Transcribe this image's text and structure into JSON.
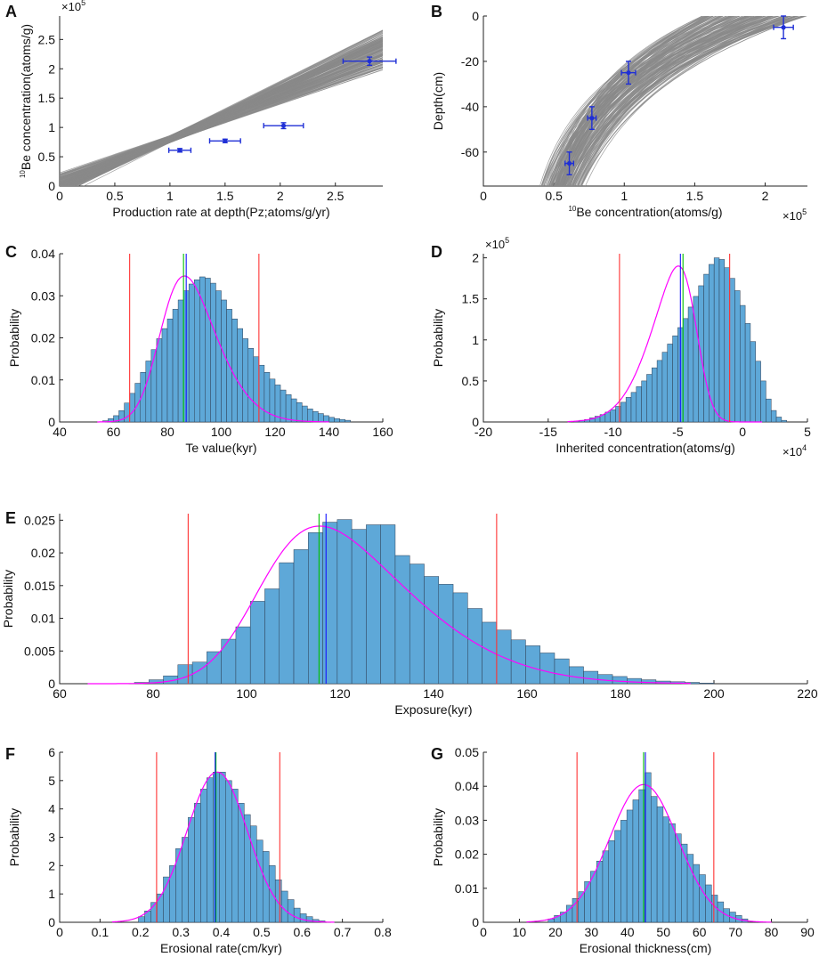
{
  "colors": {
    "gray_lines": "#8a8a8a",
    "points": "#1f2fd6",
    "bars": "#5ea8d8",
    "bar_edge": "#2e3f55",
    "kde": "#ff00ff",
    "ci": "#ff3333",
    "mean": "#1414ff",
    "median": "#00c000"
  },
  "chart_data": [
    {
      "id": "A",
      "type": "line",
      "panel_label": "A",
      "xlabel": "Production rate at depth(Pz;atoms/g/yr)",
      "ylabel": "Be concentration(atoms/g)",
      "ylabel_sup": "10",
      "y_multiplier": "×10",
      "y_multiplier_exp": "5",
      "xlim": [
        0,
        2.93
      ],
      "ylim": [
        0,
        2.9
      ],
      "xticks": [
        0,
        0.5,
        1,
        1.5,
        2,
        2.5
      ],
      "xtick_labels": [
        "0",
        "0.5",
        "1",
        "1.5",
        "2",
        "2.5"
      ],
      "yticks": [
        0,
        0.5,
        1,
        1.5,
        2,
        2.5
      ],
      "ytick_labels": [
        "0",
        "0.5",
        "1",
        "1.5",
        "2",
        "2.5"
      ],
      "model_lines": {
        "count": 160,
        "description": "Monte Carlo fitted profiles"
      },
      "points": [
        {
          "x": 1.09,
          "y": 0.61,
          "xerr": 0.1,
          "yerr": 0.03
        },
        {
          "x": 1.5,
          "y": 0.77,
          "xerr": 0.14,
          "yerr": 0.03
        },
        {
          "x": 2.03,
          "y": 1.03,
          "xerr": 0.18,
          "yerr": 0.05
        },
        {
          "x": 2.81,
          "y": 2.13,
          "xerr": 0.24,
          "yerr": 0.07
        }
      ]
    },
    {
      "id": "B",
      "type": "line",
      "panel_label": "B",
      "xlabel": "Be concentration(atoms/g)",
      "xlabel_sup": "10",
      "ylabel": "Depth(cm)",
      "x_multiplier": "×10",
      "x_multiplier_exp": "5",
      "xlim": [
        0,
        2.3
      ],
      "ylim": [
        -75,
        0
      ],
      "xticks": [
        0,
        0.5,
        1,
        1.5,
        2
      ],
      "xtick_labels": [
        "0",
        "0.5",
        "1",
        "1.5",
        "2"
      ],
      "yticks": [
        -60,
        -40,
        -20,
        0
      ],
      "ytick_labels": [
        "-60",
        "-40",
        "-20",
        "0"
      ],
      "model_lines": {
        "count": 160,
        "description": "Monte Carlo fitted profiles"
      },
      "points": [
        {
          "x": 0.61,
          "y": -65,
          "xerr": 0.03,
          "yerr": 5
        },
        {
          "x": 0.77,
          "y": -45,
          "xerr": 0.03,
          "yerr": 5
        },
        {
          "x": 1.03,
          "y": -25,
          "xerr": 0.05,
          "yerr": 5
        },
        {
          "x": 2.13,
          "y": -5,
          "xerr": 0.07,
          "yerr": 5
        }
      ]
    },
    {
      "id": "C",
      "type": "bar",
      "panel_label": "C",
      "xlabel": "Te value(kyr)",
      "ylabel": "Probability",
      "xlim": [
        40,
        160
      ],
      "ylim": [
        0,
        0.04
      ],
      "xticks": [
        40,
        60,
        80,
        100,
        120,
        140,
        160
      ],
      "xtick_labels": [
        "40",
        "60",
        "80",
        "100",
        "120",
        "140",
        "160"
      ],
      "yticks": [
        0,
        0.01,
        0.02,
        0.03,
        0.04
      ],
      "ytick_labels": [
        "0",
        "0.01",
        "0.02",
        "0.03",
        "0.04"
      ],
      "bins": {
        "start": 56,
        "width": 2,
        "values": [
          0.0003,
          0.0008,
          0.0015,
          0.0027,
          0.0045,
          0.0068,
          0.0092,
          0.0118,
          0.0145,
          0.0172,
          0.0198,
          0.0222,
          0.0245,
          0.0268,
          0.029,
          0.0312,
          0.0328,
          0.0338,
          0.0345,
          0.0342,
          0.033,
          0.0312,
          0.029,
          0.0268,
          0.0245,
          0.0222,
          0.0198,
          0.0175,
          0.0155,
          0.0135,
          0.0118,
          0.0102,
          0.0088,
          0.0076,
          0.0065,
          0.0055,
          0.0046,
          0.0038,
          0.0031,
          0.0025,
          0.002,
          0.0015,
          0.0011,
          0.0008,
          0.0006,
          0.0004
        ]
      },
      "kde": {
        "type": "skewnormal",
        "loc": 78,
        "scale": 16,
        "alpha": 2.2,
        "peak": 0.0347,
        "range": [
          54,
          140
        ]
      },
      "ci": [
        66,
        114
      ],
      "mean": 87,
      "median": 86
    },
    {
      "id": "D",
      "type": "bar",
      "panel_label": "D",
      "xlabel": "Inherited concentration(atoms/g)",
      "ylabel": "Probability",
      "y_multiplier": "×10",
      "y_multiplier_exp": "5",
      "x_multiplier": "×10",
      "x_multiplier_exp": "4",
      "xlim": [
        -20,
        5
      ],
      "ylim": [
        0,
        2.05
      ],
      "xticks": [
        -20,
        -15,
        -10,
        -5,
        0,
        5
      ],
      "xtick_labels": [
        "-20",
        "-15",
        "-10",
        "-5",
        "0",
        "5"
      ],
      "yticks": [
        0,
        0.5,
        1,
        1.5,
        2
      ],
      "ytick_labels": [
        "0",
        "0.5",
        "1",
        "1.5",
        "2"
      ],
      "bins": {
        "start": -13,
        "width": 0.4,
        "values": [
          0.01,
          0.02,
          0.03,
          0.05,
          0.07,
          0.09,
          0.12,
          0.15,
          0.19,
          0.24,
          0.3,
          0.36,
          0.43,
          0.5,
          0.58,
          0.66,
          0.75,
          0.85,
          0.95,
          1.05,
          1.15,
          1.26,
          1.4,
          1.53,
          1.66,
          1.8,
          1.92,
          2.0,
          1.98,
          1.88,
          1.75,
          1.6,
          1.42,
          1.2,
          0.98,
          0.74,
          0.5,
          0.28,
          0.14,
          0.06,
          0.02
        ]
      },
      "kde": {
        "type": "skewnormal",
        "loc": -3.6,
        "scale": 2.8,
        "alpha": -2.8,
        "peak": 1.9,
        "range": [
          -13.5,
          1.5
        ]
      },
      "ci": [
        -9.5,
        -1.0
      ],
      "mean": -4.8,
      "median": -4.6
    },
    {
      "id": "E",
      "type": "bar",
      "panel_label": "E",
      "xlabel": "Exposure(kyr)",
      "ylabel": "Probability",
      "xlim": [
        60,
        220
      ],
      "ylim": [
        0,
        0.026
      ],
      "xticks": [
        60,
        80,
        100,
        120,
        140,
        160,
        180,
        200,
        220
      ],
      "xtick_labels": [
        "60",
        "80",
        "100",
        "120",
        "140",
        "160",
        "180",
        "200",
        "220"
      ],
      "yticks": [
        0,
        0.005,
        0.01,
        0.015,
        0.02,
        0.025
      ],
      "ytick_labels": [
        "0",
        "0.005",
        "0.01",
        "0.015",
        "0.02",
        "0.025"
      ],
      "bins": {
        "start": 76,
        "width": 3.1,
        "values": [
          0.0002,
          0.0006,
          0.0012,
          0.0029,
          0.0033,
          0.0049,
          0.0068,
          0.0087,
          0.0126,
          0.0145,
          0.0185,
          0.0205,
          0.0231,
          0.0247,
          0.0251,
          0.0236,
          0.0243,
          0.0243,
          0.0196,
          0.0183,
          0.0164,
          0.0152,
          0.0139,
          0.0115,
          0.0094,
          0.0082,
          0.0067,
          0.0058,
          0.0047,
          0.0038,
          0.0026,
          0.0019,
          0.0014,
          0.0011,
          0.0008,
          0.0006,
          0.0004,
          0.0003,
          0.0002,
          0.0001
        ]
      },
      "kde": {
        "type": "skewnormal",
        "loc": 103,
        "scale": 26,
        "alpha": 2.8,
        "peak": 0.0241,
        "range": [
          66,
          195
        ]
      },
      "ci": [
        87.5,
        153.5
      ],
      "mean": 117,
      "median": 115.5
    },
    {
      "id": "F",
      "type": "bar",
      "panel_label": "F",
      "xlabel": "Erosional rate(cm/kyr)",
      "ylabel": "Probability",
      "xlim": [
        0,
        0.8
      ],
      "ylim": [
        0,
        6
      ],
      "xticks": [
        0,
        0.1,
        0.2,
        0.3,
        0.4,
        0.5,
        0.6,
        0.7,
        0.8
      ],
      "xtick_labels": [
        "0",
        "0.1",
        "0.2",
        "0.3",
        "0.4",
        "0.5",
        "0.6",
        "0.7",
        "0.8"
      ],
      "yticks": [
        0,
        1,
        2,
        3,
        4,
        5,
        6
      ],
      "ytick_labels": [
        "0",
        "1",
        "2",
        "3",
        "4",
        "5",
        "6"
      ],
      "bins": {
        "start": 0.195,
        "width": 0.0154,
        "values": [
          0.2,
          0.4,
          0.7,
          1.0,
          1.6,
          2.0,
          2.6,
          3.0,
          3.7,
          4.2,
          4.7,
          5.1,
          5.3,
          5.3,
          5.0,
          4.7,
          4.2,
          3.8,
          3.4,
          2.9,
          2.5,
          2.0,
          1.5,
          1.1,
          0.8,
          0.5,
          0.3,
          0.2,
          0.1,
          0.05
        ]
      },
      "kde": {
        "type": "normal",
        "loc": 0.39,
        "scale": 0.075,
        "peak": 5.3,
        "range": [
          0.13,
          0.68
        ]
      },
      "ci": [
        0.24,
        0.545
      ],
      "mean": 0.385,
      "median": 0.387
    },
    {
      "id": "G",
      "type": "bar",
      "panel_label": "G",
      "xlabel": "Erosional thickness(cm)",
      "ylabel": "Probability",
      "xlim": [
        0,
        90
      ],
      "ylim": [
        0,
        0.05
      ],
      "xticks": [
        0,
        10,
        20,
        30,
        40,
        50,
        60,
        70,
        80,
        90
      ],
      "xtick_labels": [
        "0",
        "10",
        "20",
        "30",
        "40",
        "50",
        "60",
        "70",
        "80",
        "90"
      ],
      "yticks": [
        0,
        0.01,
        0.02,
        0.03,
        0.04,
        0.05
      ],
      "ytick_labels": [
        "0",
        "0.01",
        "0.02",
        "0.03",
        "0.04",
        "0.05"
      ],
      "bins": {
        "start": 18,
        "width": 1.68,
        "values": [
          0.001,
          0.002,
          0.003,
          0.005,
          0.007,
          0.009,
          0.012,
          0.015,
          0.018,
          0.021,
          0.024,
          0.027,
          0.03,
          0.033,
          0.036,
          0.039,
          0.044,
          0.037,
          0.034,
          0.031,
          0.029,
          0.026,
          0.023,
          0.02,
          0.017,
          0.014,
          0.011,
          0.008,
          0.006,
          0.004,
          0.003,
          0.002,
          0.001
        ]
      },
      "kde": {
        "type": "normal",
        "loc": 44.5,
        "scale": 9.5,
        "peak": 0.0405,
        "range": [
          12,
          80
        ]
      },
      "ci": [
        26,
        64
      ],
      "mean": 45,
      "median": 44.5
    }
  ]
}
